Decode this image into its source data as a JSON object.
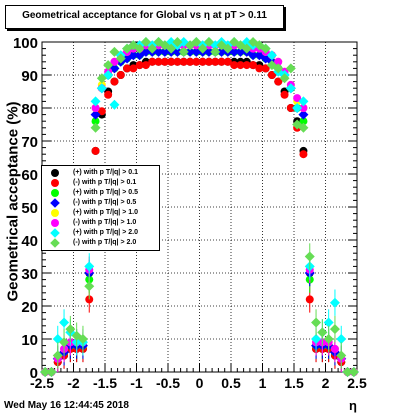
{
  "title": "Geometrical acceptance for Global vs  η at pT > 0.11",
  "ylabel": "Geometrical acceptance (%)",
  "xlabel": "η",
  "datestamp": "Wed May 16 12:44:45 2018",
  "legend": [
    {
      "label": "(+) with p T/|q| > 0.1",
      "color": "#000000",
      "marker": "circle"
    },
    {
      "label": "(-) with p T/|q| > 0.1",
      "color": "#ff0000",
      "marker": "circle"
    },
    {
      "label": "(+) with p T/|q| > 0.5",
      "color": "#00ff00",
      "marker": "circle"
    },
    {
      "label": "(-) with p T/|q| > 0.5",
      "color": "#0000ff",
      "marker": "diamond"
    },
    {
      "label": "(+) with p T/|q| > 1.0",
      "color": "#ffff00",
      "marker": "circle"
    },
    {
      "label": "(-) with p T/|q| > 1.0",
      "color": "#ff00ff",
      "marker": "circle"
    },
    {
      "label": "(+) with p T/|q| > 2.0",
      "color": "#00ffff",
      "marker": "diamond"
    },
    {
      "label": "(-) with p T/|q| > 2.0",
      "color": "#66dd55",
      "marker": "diamond"
    }
  ],
  "chart_data": {
    "type": "scatter",
    "title": "Geometrical acceptance for Global vs  η at pT > 0.11",
    "xlabel": "η",
    "ylabel": "Geometrical acceptance (%)",
    "xlim": [
      -2.5,
      2.5
    ],
    "ylim": [
      0,
      100
    ],
    "x_ticks": [
      -2.5,
      -2,
      -1.5,
      -1,
      -0.5,
      0,
      0.5,
      1,
      1.5,
      2,
      2.5
    ],
    "y_ticks": [
      0,
      10,
      20,
      30,
      40,
      50,
      60,
      70,
      80,
      90,
      100
    ],
    "grid": true,
    "legend_position": "middle-left",
    "x": [
      -2.45,
      -2.35,
      -2.25,
      -2.15,
      -2.05,
      -1.95,
      -1.85,
      -1.75,
      -1.65,
      -1.55,
      -1.45,
      -1.35,
      -1.25,
      -1.15,
      -1.05,
      -0.95,
      -0.85,
      -0.75,
      -0.65,
      -0.55,
      -0.45,
      -0.35,
      -0.25,
      -0.15,
      -0.05,
      0.05,
      0.15,
      0.25,
      0.35,
      0.45,
      0.55,
      0.65,
      0.75,
      0.85,
      0.95,
      1.05,
      1.15,
      1.25,
      1.35,
      1.45,
      1.55,
      1.65,
      1.75,
      1.85,
      1.95,
      2.05,
      2.15,
      2.25,
      2.35,
      2.45
    ],
    "series": [
      {
        "name": "(+) with p T/|q| > 0.1",
        "color": "#000000",
        "values": [
          0,
          0,
          3,
          5,
          7,
          7,
          7,
          30,
          67,
          78,
          85,
          88,
          90,
          92,
          93,
          93,
          94,
          94,
          94,
          94,
          94,
          94,
          94,
          94,
          94,
          94,
          94,
          94,
          94,
          94,
          94,
          94,
          94,
          93,
          93,
          92,
          90,
          88,
          85,
          80,
          76,
          67,
          30,
          7,
          7,
          7,
          5,
          3,
          0,
          0
        ]
      },
      {
        "name": "(-) with p T/|q| > 0.1",
        "color": "#ff0000",
        "values": [
          0,
          0,
          3,
          5,
          7,
          7,
          7,
          22,
          67,
          79,
          84,
          88,
          90,
          92,
          92,
          93,
          93,
          94,
          94,
          94,
          94,
          94,
          94,
          94,
          94,
          94,
          94,
          94,
          94,
          94,
          93,
          93,
          93,
          93,
          92,
          92,
          90,
          88,
          84,
          80,
          74,
          66,
          22,
          7,
          7,
          7,
          5,
          3,
          0,
          0
        ]
      },
      {
        "name": "(+) with p T/|q| > 0.5",
        "color": "#00ff00",
        "values": [
          0,
          0,
          4,
          6,
          8,
          8,
          8,
          28,
          76,
          86,
          90,
          92,
          94,
          95,
          96,
          96,
          97,
          97,
          97,
          97,
          97,
          97,
          97,
          97,
          97,
          97,
          97,
          97,
          97,
          97,
          97,
          97,
          97,
          96,
          96,
          95,
          94,
          92,
          90,
          86,
          80,
          76,
          28,
          8,
          8,
          8,
          6,
          4,
          0,
          0
        ]
      },
      {
        "name": "(-) with p T/|q| > 0.5",
        "color": "#0000ff",
        "values": [
          0,
          0,
          4,
          6,
          8,
          8,
          8,
          30,
          78,
          86,
          90,
          92,
          94,
          95,
          96,
          96,
          97,
          97,
          97,
          97,
          97,
          97,
          97,
          97,
          97,
          97,
          97,
          97,
          97,
          97,
          97,
          97,
          97,
          96,
          96,
          95,
          94,
          92,
          90,
          86,
          80,
          78,
          30,
          8,
          8,
          8,
          6,
          4,
          0,
          0
        ]
      },
      {
        "name": "(+) with p T/|q| > 1.0",
        "color": "#ffff00",
        "values": [
          0,
          0,
          4,
          7,
          9,
          9,
          9,
          31,
          80,
          87,
          91,
          94,
          96,
          97,
          98,
          98,
          99,
          99,
          99,
          99,
          99,
          99,
          99,
          99,
          99,
          99,
          99,
          99,
          99,
          99,
          99,
          99,
          99,
          98,
          98,
          97,
          96,
          94,
          91,
          87,
          82,
          80,
          31,
          9,
          9,
          9,
          7,
          4,
          0,
          0
        ]
      },
      {
        "name": "(-) with p T/|q| > 1.0",
        "color": "#ff00ff",
        "values": [
          0,
          0,
          4,
          7,
          9,
          9,
          9,
          31,
          80,
          86,
          91,
          94,
          96,
          97,
          98,
          98,
          99,
          99,
          99,
          99,
          99,
          99,
          99,
          99,
          99,
          99,
          99,
          99,
          99,
          99,
          99,
          99,
          99,
          98,
          98,
          97,
          96,
          94,
          91,
          87,
          83,
          80,
          31,
          9,
          9,
          9,
          7,
          4,
          0,
          0
        ]
      },
      {
        "name": "(+) with p T/|q| > 2.0",
        "color": "#00ffff",
        "values": [
          0,
          0,
          10,
          15,
          12,
          9,
          9,
          32,
          82,
          86,
          90,
          81,
          96,
          98,
          99,
          99,
          100,
          99,
          100,
          99,
          100,
          99,
          100,
          99,
          100,
          99,
          100,
          99,
          100,
          99,
          100,
          99,
          100,
          99,
          99,
          98,
          96,
          91,
          90,
          86,
          80,
          82,
          32,
          10,
          12,
          15,
          21,
          10,
          0,
          0
        ]
      },
      {
        "name": "(-) with p T/|q| > 2.0",
        "color": "#66dd55",
        "values": [
          0,
          0,
          5,
          9,
          13,
          11,
          10,
          26,
          74,
          89,
          93,
          97,
          95,
          98,
          99,
          98,
          100,
          98,
          100,
          99,
          98,
          100,
          97,
          99,
          100,
          98,
          100,
          97,
          99,
          98,
          100,
          99,
          98,
          100,
          99,
          98,
          93,
          92,
          89,
          92,
          75,
          74,
          35,
          15,
          12,
          10,
          13,
          5,
          0,
          0
        ]
      }
    ]
  }
}
